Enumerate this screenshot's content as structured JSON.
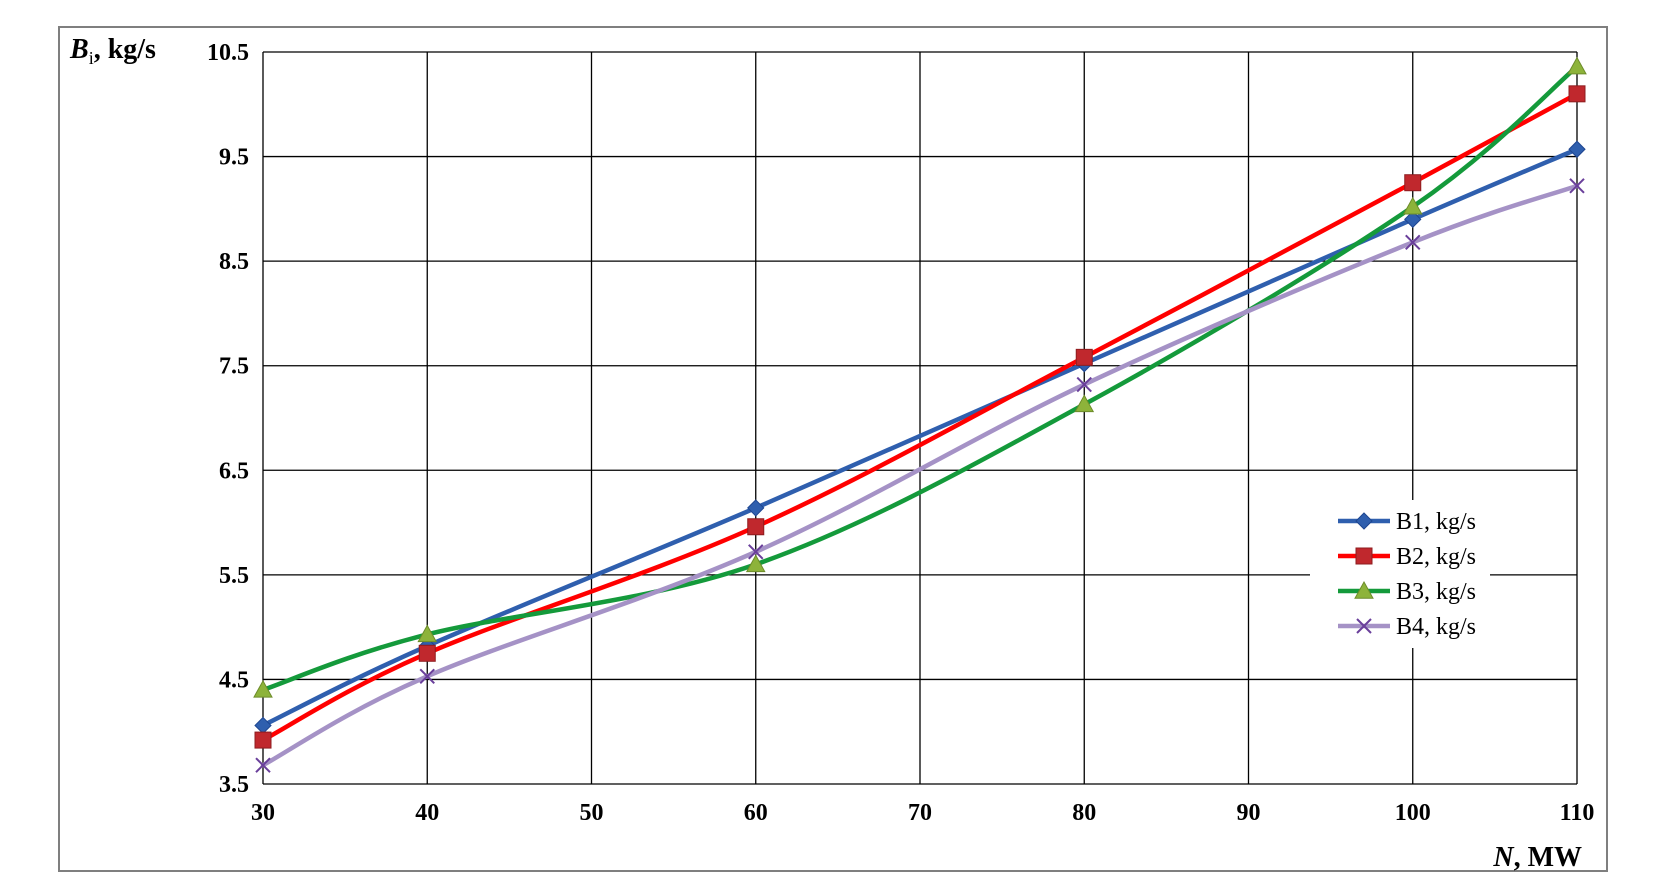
{
  "chart_data": {
    "type": "line",
    "x": [
      30,
      40,
      60,
      80,
      100,
      110
    ],
    "series": [
      {
        "name": "B1, kg/s",
        "values": [
          4.06,
          4.82,
          6.14,
          7.52,
          8.9,
          9.57
        ],
        "color": "#2f5fae",
        "marker": "diamond"
      },
      {
        "name": "B2, kg/s",
        "values": [
          3.92,
          4.75,
          5.96,
          7.58,
          9.25,
          10.1
        ],
        "color": "#ff0000",
        "marker": "square",
        "marker_color": "#c0282d"
      },
      {
        "name": "B3, kg/s",
        "values": [
          4.4,
          4.93,
          5.6,
          7.13,
          9.02,
          10.36
        ],
        "color": "#149a3b",
        "marker": "triangle",
        "marker_color": "#8db33a"
      },
      {
        "name": "B4, kg/s",
        "values": [
          3.68,
          4.53,
          5.72,
          7.32,
          8.68,
          9.22
        ],
        "color": "#a592c6",
        "marker": "x",
        "marker_color": "#6a3f9b"
      }
    ],
    "xlim": [
      30,
      110
    ],
    "ylim": [
      3.5,
      10.5
    ],
    "x_ticks": [
      "30",
      "40",
      "50",
      "60",
      "70",
      "80",
      "90",
      "100",
      "110"
    ],
    "y_ticks": [
      "3.5",
      "4.5",
      "5.5",
      "6.5",
      "7.5",
      "8.5",
      "9.5",
      "10.5"
    ],
    "ylabel": {
      "var": "B",
      "sub": "i",
      "unit": ", kg/s"
    },
    "xlabel": {
      "var": "N",
      "unit": ", MW"
    },
    "grid": true,
    "legend_position": "right"
  }
}
